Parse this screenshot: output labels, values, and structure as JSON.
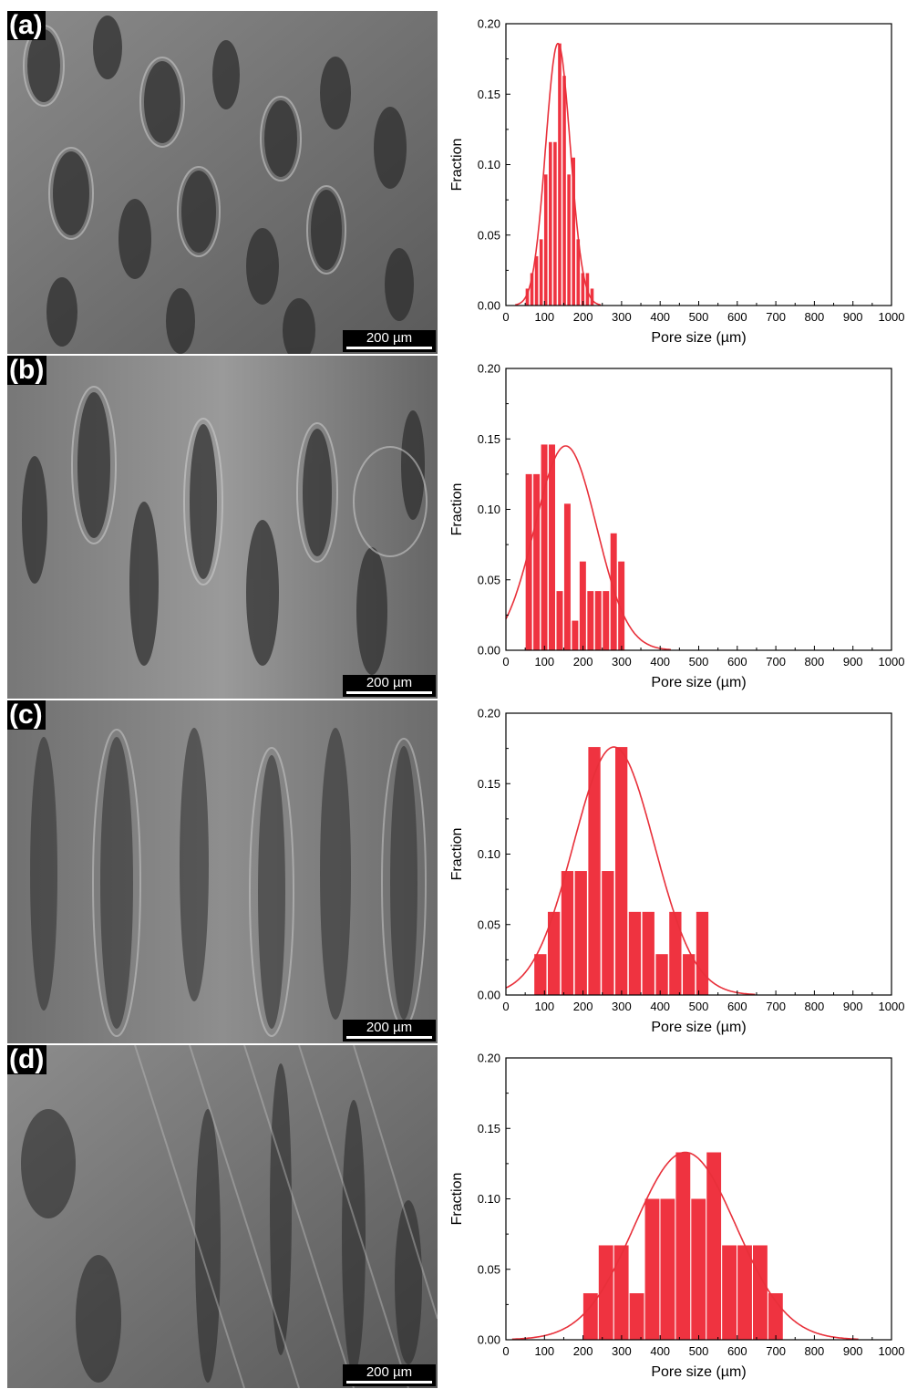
{
  "colors": {
    "bar": "#ef3340",
    "curve": "#e8303a",
    "axis": "#000000"
  },
  "panels": [
    {
      "label": "(a)",
      "scale_bar": "200 µm"
    },
    {
      "label": "(b)",
      "scale_bar": "200 µm"
    },
    {
      "label": "(c)",
      "scale_bar": "200 µm"
    },
    {
      "label": "(d)",
      "scale_bar": "200 µm"
    }
  ],
  "chart_data": [
    {
      "type": "bar",
      "xlabel": "Pore size (µm)",
      "ylabel": "Fraction",
      "xlim": [
        0,
        1000
      ],
      "ylim": [
        0,
        0.2
      ],
      "xticks": [
        "0",
        "100",
        "200",
        "300",
        "400",
        "500",
        "600",
        "700",
        "800",
        "900",
        "1000"
      ],
      "yticks": [
        "0.00",
        "0.05",
        "0.10",
        "0.15",
        "0.20"
      ],
      "bin_width": 12,
      "bin_centers": [
        56,
        68,
        80,
        92,
        104,
        116,
        128,
        140,
        152,
        164,
        176,
        188,
        200,
        212,
        224
      ],
      "values": [
        0.012,
        0.023,
        0.035,
        0.047,
        0.093,
        0.116,
        0.116,
        0.186,
        0.163,
        0.093,
        0.105,
        0.047,
        0.023,
        0.023,
        0.012
      ],
      "fit": {
        "type": "gaussian",
        "mean": 135,
        "sigma": 32,
        "peak": 0.186
      }
    },
    {
      "type": "bar",
      "xlabel": "Pore size (µm)",
      "ylabel": "Fraction",
      "xlim": [
        0,
        1000
      ],
      "ylim": [
        0,
        0.2
      ],
      "xticks": [
        "0",
        "100",
        "200",
        "300",
        "400",
        "500",
        "600",
        "700",
        "800",
        "900",
        "1000"
      ],
      "yticks": [
        "0.00",
        "0.05",
        "0.10",
        "0.15",
        "0.20"
      ],
      "bin_width": 20,
      "bin_centers": [
        60,
        80,
        100,
        120,
        140,
        160,
        180,
        200,
        220,
        240,
        260,
        280,
        300
      ],
      "values": [
        0.125,
        0.125,
        0.146,
        0.146,
        0.042,
        0.104,
        0.021,
        0.063,
        0.042,
        0.042,
        0.042,
        0.083,
        0.063
      ],
      "fit": {
        "type": "gaussian",
        "mean": 155,
        "sigma": 80,
        "peak": 0.145
      }
    },
    {
      "type": "bar",
      "xlabel": "Pore size (µm)",
      "ylabel": "Fraction",
      "xlim": [
        0,
        1000
      ],
      "ylim": [
        0,
        0.2
      ],
      "xticks": [
        "0",
        "100",
        "200",
        "300",
        "400",
        "500",
        "600",
        "700",
        "800",
        "900",
        "1000"
      ],
      "yticks": [
        "0.00",
        "0.05",
        "0.10",
        "0.15",
        "0.20"
      ],
      "bin_width": 35,
      "bin_centers": [
        90,
        125,
        160,
        195,
        230,
        265,
        300,
        335,
        370,
        405,
        440,
        475,
        510
      ],
      "values": [
        0.029,
        0.059,
        0.088,
        0.088,
        0.176,
        0.088,
        0.176,
        0.059,
        0.059,
        0.029,
        0.059,
        0.029,
        0.059
      ],
      "fit": {
        "type": "gaussian",
        "mean": 280,
        "sigma": 105,
        "peak": 0.176
      }
    },
    {
      "type": "bar",
      "xlabel": "Pore size (µm)",
      "ylabel": "Fraction",
      "xlim": [
        0,
        1000
      ],
      "ylim": [
        0,
        0.2
      ],
      "xticks": [
        "0",
        "100",
        "200",
        "300",
        "400",
        "500",
        "600",
        "700",
        "800",
        "900",
        "1000"
      ],
      "yticks": [
        "0.00",
        "0.05",
        "0.10",
        "0.15",
        "0.20"
      ],
      "bin_width": 41,
      "bin_centers": [
        220,
        260,
        300,
        340,
        380,
        420,
        460,
        500,
        540,
        580,
        620,
        660,
        700
      ],
      "values": [
        0.033,
        0.067,
        0.067,
        0.033,
        0.1,
        0.1,
        0.133,
        0.1,
        0.133,
        0.067,
        0.067,
        0.067,
        0.033
      ],
      "fit": {
        "type": "gaussian",
        "mean": 465,
        "sigma": 132,
        "peak": 0.133
      }
    }
  ]
}
